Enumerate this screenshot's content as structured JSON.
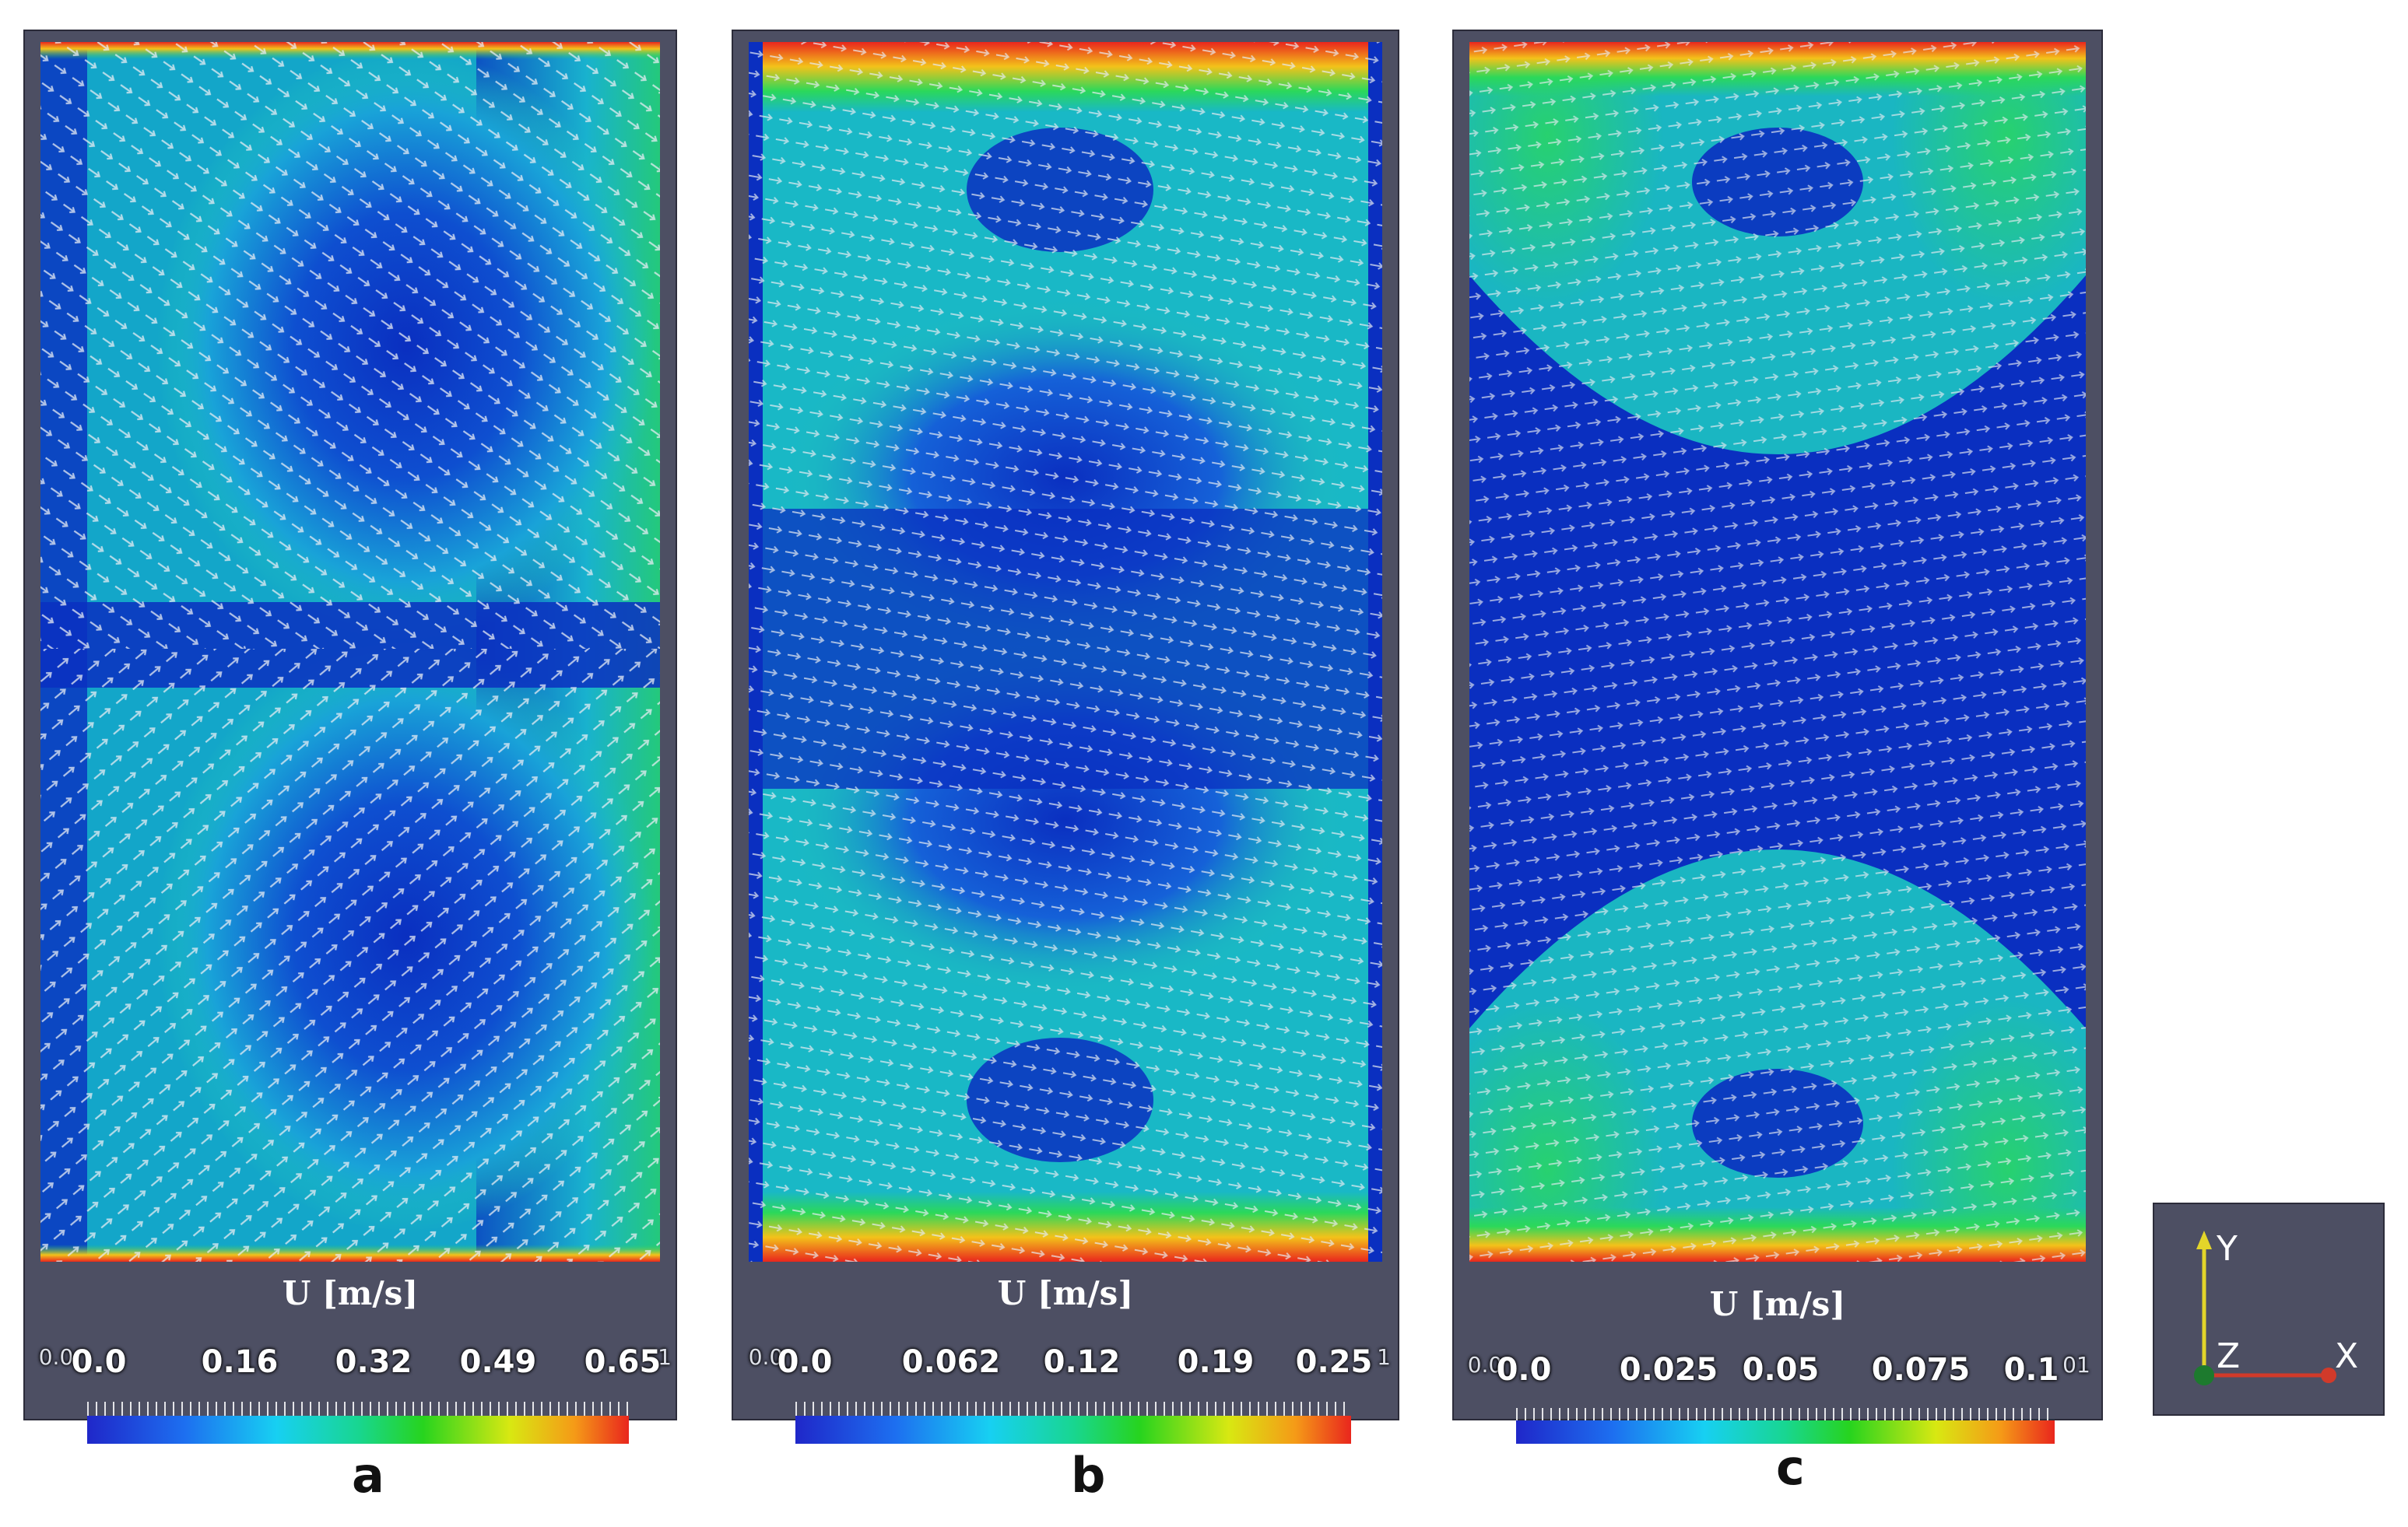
{
  "panels": [
    {
      "label": "a",
      "legend_title": "U [m/s]",
      "ticks": [
        "0.0",
        "0.16",
        "0.32",
        "0.49",
        "0.65"
      ],
      "min_edge": "0.0",
      "max_edge": "1"
    },
    {
      "label": "b",
      "legend_title": "U [m/s]",
      "ticks": [
        "0.0",
        "0.062",
        "0.12",
        "0.19",
        "0.25"
      ],
      "min_edge": "0.0",
      "max_edge": "1"
    },
    {
      "label": "c",
      "legend_title": "U [m/s]",
      "ticks": [
        "0.0",
        "0.025",
        "0.05",
        "0.075",
        "0.1"
      ],
      "min_edge": "0.0",
      "max_edge": "01"
    }
  ],
  "axes": {
    "y": "Y",
    "x": "X",
    "z": "Z"
  },
  "colors": {
    "background_panel": "#4d4f63",
    "field_low": "#0a2fc0",
    "field_mid": "#20c6b0",
    "field_high": "#e9261d",
    "vectors": "#e8ecf2"
  }
}
